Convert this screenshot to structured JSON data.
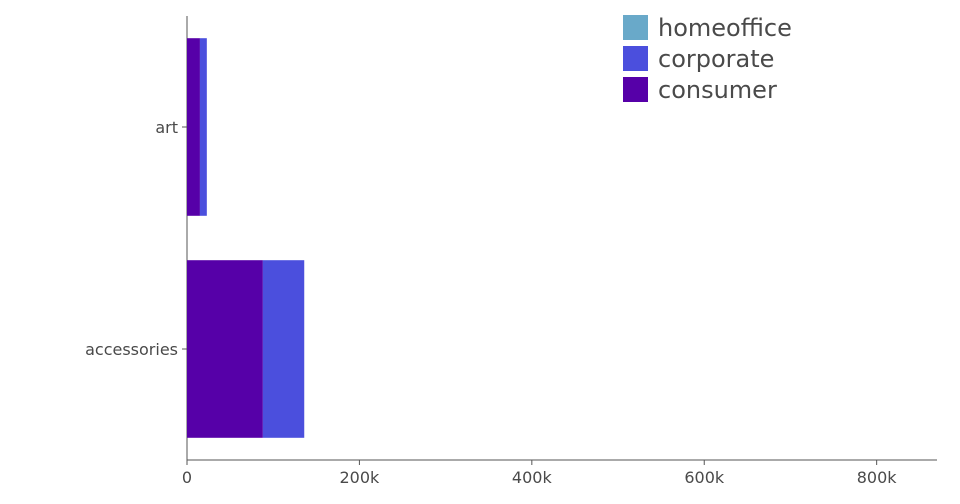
{
  "chart_data": {
    "type": "bar",
    "orientation": "horizontal",
    "stacked": true,
    "categories": [
      "art",
      "accessories"
    ],
    "series": [
      {
        "name": "consumer",
        "color": "#5600a8",
        "values": [
          15000,
          88000
        ]
      },
      {
        "name": "corporate",
        "color": "#4b4fdd",
        "values": [
          8000,
          48000
        ]
      },
      {
        "name": "homeoffice",
        "color": "#69a9c9",
        "values": [
          0,
          0
        ]
      }
    ],
    "xlim": [
      0,
      870000
    ],
    "x_ticks": [
      {
        "value": 0,
        "label": "0"
      },
      {
        "value": 200000,
        "label": "200k"
      },
      {
        "value": 400000,
        "label": "400k"
      },
      {
        "value": 600000,
        "label": "600k"
      },
      {
        "value": 800000,
        "label": "800k"
      }
    ],
    "legend": {
      "placement": "top-right",
      "items": [
        {
          "label": "homeoffice",
          "color": "#69a9c9"
        },
        {
          "label": "corporate",
          "color": "#4b4fdd"
        },
        {
          "label": "consumer",
          "color": "#5600a8"
        }
      ]
    },
    "grid": false
  }
}
